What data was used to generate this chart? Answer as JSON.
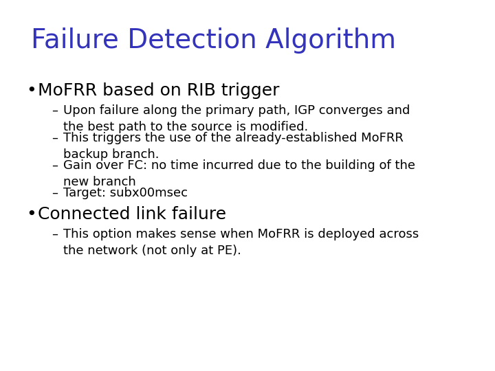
{
  "title": "Failure Detection Algorithm",
  "title_color": "#3333BB",
  "title_fontsize": 28,
  "background_color": "#FFFFFF",
  "bullet_color": "#000000",
  "bullet1_text": "MoFRR based on RIB trigger",
  "bullet1_fontsize": 18,
  "bullet2_text": "Connected link failure",
  "bullet2_fontsize": 18,
  "sub_bullets_1": [
    "Upon failure along the primary path, IGP converges and\nthe best path to the source is modified.",
    "This triggers the use of the already-established MoFRR\nbackup branch.",
    "Gain over FC: no time incurred due to the building of the\nnew branch",
    "Target: subx00msec"
  ],
  "sub_bullets_2": [
    "This option makes sense when MoFRR is deployed across\nthe network (not only at PE)."
  ],
  "sub_bullet_fontsize": 13
}
